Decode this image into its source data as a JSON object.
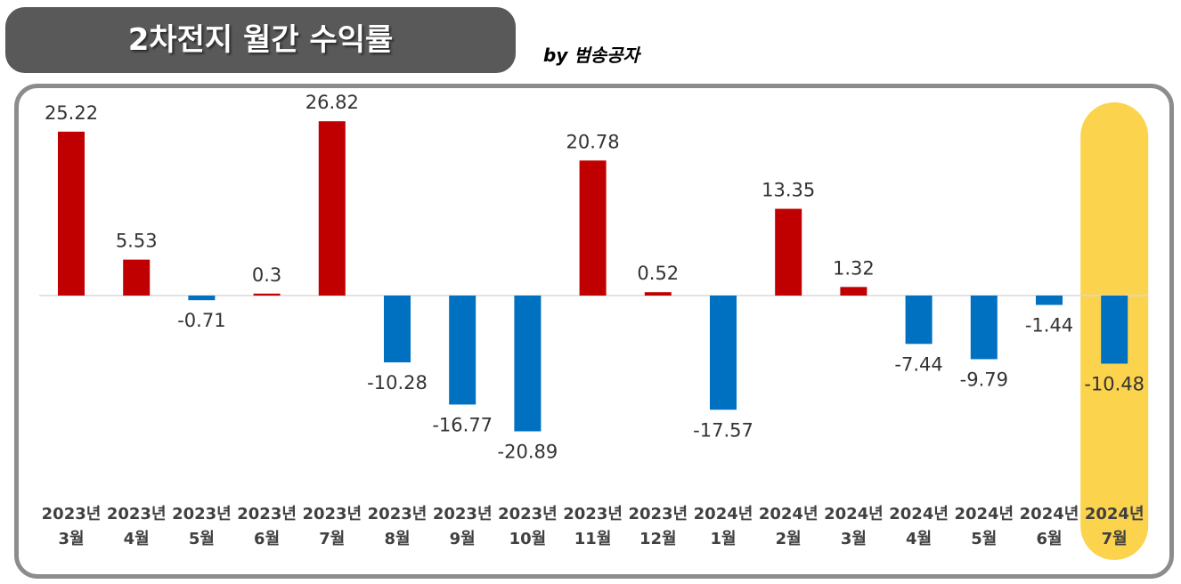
{
  "title": "2차전지 월간 수익률",
  "byline": "by 범송공자",
  "colors": {
    "positive": "#c00000",
    "negative": "#0070c0",
    "highlight": "#fcd34d",
    "banner": "#595959",
    "frame": "#8c8c8c"
  },
  "chart_data": {
    "type": "bar",
    "title": "2차전지 월간 수익률",
    "xlabel": "",
    "ylabel": "",
    "grid": false,
    "legend": "none",
    "categories": [
      [
        "2023년",
        "3월"
      ],
      [
        "2023년",
        "4월"
      ],
      [
        "2023년",
        "5월"
      ],
      [
        "2023년",
        "6월"
      ],
      [
        "2023년",
        "7월"
      ],
      [
        "2023년",
        "8월"
      ],
      [
        "2023년",
        "9월"
      ],
      [
        "2023년",
        "10월"
      ],
      [
        "2023년",
        "11월"
      ],
      [
        "2023년",
        "12월"
      ],
      [
        "2024년",
        "1월"
      ],
      [
        "2024년",
        "2월"
      ],
      [
        "2024년",
        "3월"
      ],
      [
        "2024년",
        "4월"
      ],
      [
        "2024년",
        "5월"
      ],
      [
        "2024년",
        "6월"
      ],
      [
        "2024년",
        "7월"
      ]
    ],
    "values": [
      25.22,
      5.53,
      -0.71,
      0.3,
      26.82,
      -10.28,
      -16.77,
      -20.89,
      20.78,
      0.52,
      -17.57,
      13.35,
      1.32,
      -7.44,
      -9.79,
      -1.44,
      -10.48
    ],
    "labels": [
      "25.22",
      "5.53",
      "-0.71",
      "0.3",
      "26.82",
      "-10.28",
      "-16.77",
      "-20.89",
      "20.78",
      "0.52",
      "-17.57",
      "13.35",
      "1.32",
      "-7.44",
      "-9.79",
      "-1.44",
      "-10.48"
    ],
    "highlighted_category": "2024년 7월"
  }
}
